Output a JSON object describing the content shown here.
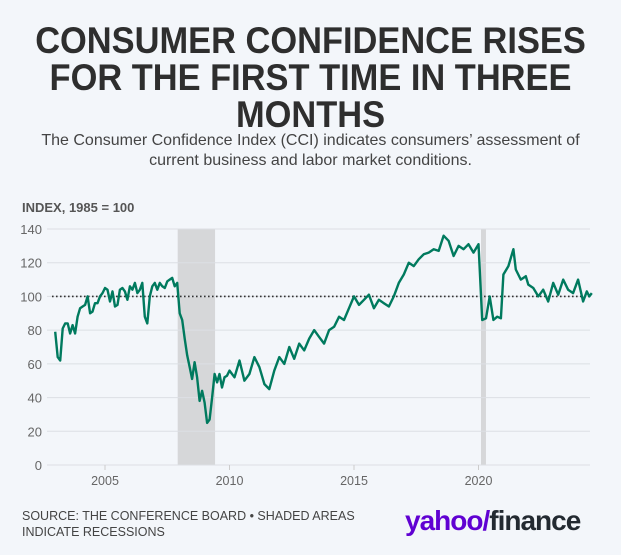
{
  "header": {
    "title_lines": [
      "CONSUMER CONFIDENCE RISES",
      "FOR THE FIRST TIME IN THREE",
      "MONTHS"
    ],
    "subtitle_lines": [
      "The Consumer Confidence Index (CCI) indicates consumers’ assessment of",
      "current business and labor market conditions."
    ]
  },
  "footer": {
    "source_lines": [
      "SOURCE: THE CONFERENCE BOARD • SHADED AREAS",
      "INDICATE RECESSIONS"
    ],
    "logo_yahoo": "yahoo",
    "logo_bang": "/",
    "logo_finance": "finance",
    "brand_color": "#6001d2"
  },
  "chart_data": {
    "type": "line",
    "title": "CONSUMER CONFIDENCE RISES FOR THE FIRST TIME IN THREE MONTHS",
    "ylabel": "INDEX, 1985 = 100",
    "xlabel": "",
    "xlim": [
      2002.8,
      2024.6
    ],
    "ylim": [
      0,
      140
    ],
    "yticks": [
      0,
      20,
      40,
      60,
      80,
      100,
      120,
      140
    ],
    "xticks": [
      2005,
      2010,
      2015,
      2020
    ],
    "grid": true,
    "reference_line": {
      "value": 100,
      "style": "dotted"
    },
    "line_color": "#007a5e",
    "recessions": [
      {
        "start": 2007.92,
        "end": 2009.42
      },
      {
        "start": 2020.1,
        "end": 2020.3
      }
    ],
    "series": [
      {
        "name": "Consumer Confidence Index",
        "x": [
          2003.0,
          2003.1,
          2003.2,
          2003.3,
          2003.4,
          2003.5,
          2003.6,
          2003.7,
          2003.8,
          2003.9,
          2004.0,
          2004.1,
          2004.2,
          2004.3,
          2004.4,
          2004.5,
          2004.6,
          2004.7,
          2004.8,
          2004.9,
          2005.0,
          2005.1,
          2005.2,
          2005.3,
          2005.4,
          2005.5,
          2005.6,
          2005.7,
          2005.8,
          2005.9,
          2006.0,
          2006.1,
          2006.2,
          2006.3,
          2006.4,
          2006.5,
          2006.6,
          2006.7,
          2006.8,
          2006.9,
          2007.0,
          2007.1,
          2007.2,
          2007.3,
          2007.4,
          2007.5,
          2007.6,
          2007.7,
          2007.8,
          2007.9,
          2008.0,
          2008.1,
          2008.2,
          2008.3,
          2008.4,
          2008.5,
          2008.6,
          2008.7,
          2008.8,
          2008.9,
          2009.0,
          2009.1,
          2009.2,
          2009.3,
          2009.4,
          2009.5,
          2009.6,
          2009.7,
          2009.8,
          2009.9,
          2010.0,
          2010.2,
          2010.4,
          2010.6,
          2010.8,
          2011.0,
          2011.2,
          2011.4,
          2011.6,
          2011.8,
          2012.0,
          2012.2,
          2012.4,
          2012.6,
          2012.8,
          2013.0,
          2013.2,
          2013.4,
          2013.6,
          2013.8,
          2014.0,
          2014.2,
          2014.4,
          2014.6,
          2014.8,
          2015.0,
          2015.2,
          2015.4,
          2015.6,
          2015.8,
          2016.0,
          2016.2,
          2016.4,
          2016.6,
          2016.8,
          2017.0,
          2017.2,
          2017.4,
          2017.6,
          2017.8,
          2018.0,
          2018.2,
          2018.4,
          2018.6,
          2018.8,
          2019.0,
          2019.2,
          2019.4,
          2019.6,
          2019.8,
          2020.0,
          2020.15,
          2020.3,
          2020.45,
          2020.6,
          2020.75,
          2020.9,
          2021.0,
          2021.2,
          2021.4,
          2021.5,
          2021.7,
          2021.9,
          2022.0,
          2022.2,
          2022.4,
          2022.6,
          2022.8,
          2023.0,
          2023.2,
          2023.4,
          2023.6,
          2023.8,
          2024.0,
          2024.2,
          2024.35,
          2024.45,
          2024.55
        ],
        "values": [
          79,
          64,
          62,
          81,
          84,
          84,
          78,
          83,
          78,
          88,
          93,
          94,
          95,
          100,
          90,
          91,
          96,
          96,
          100,
          102,
          105,
          104,
          97,
          103,
          94,
          95,
          104,
          105,
          103,
          98,
          106,
          104,
          108,
          102,
          104,
          108,
          88,
          84,
          100,
          106,
          108,
          104,
          108,
          106,
          105,
          109,
          110,
          111,
          106,
          108,
          90,
          86,
          75,
          65,
          58,
          51,
          61,
          52,
          38,
          44,
          37,
          25,
          27,
          40,
          54,
          49,
          54,
          46,
          52,
          53,
          56,
          52,
          62,
          50,
          54,
          64,
          58,
          48,
          45,
          56,
          64,
          60,
          70,
          63,
          72,
          68,
          75,
          80,
          76,
          72,
          80,
          82,
          88,
          86,
          93,
          100,
          95,
          98,
          101,
          93,
          98,
          96,
          94,
          100,
          108,
          113,
          120,
          118,
          122,
          125,
          126,
          128,
          127,
          136,
          133,
          124,
          130,
          128,
          131,
          126,
          131,
          86,
          87,
          100,
          86,
          88,
          87,
          113,
          118,
          128,
          116,
          110,
          112,
          107,
          105,
          100,
          104,
          97,
          108,
          101,
          110,
          104,
          102,
          110,
          97,
          103,
          100,
          102
        ]
      }
    ]
  }
}
